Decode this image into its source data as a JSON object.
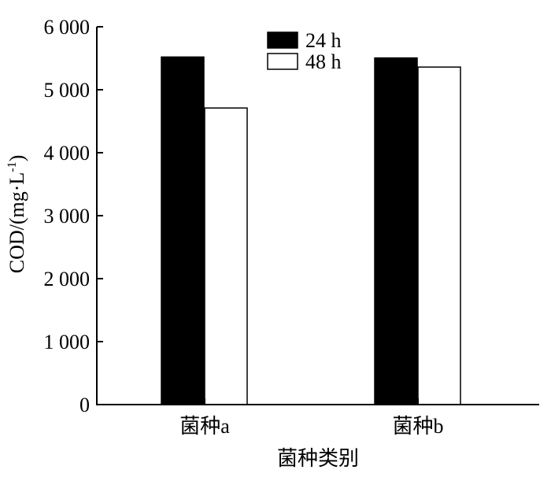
{
  "chart_data": {
    "type": "bar",
    "categories": [
      "菌种a",
      "菌种b"
    ],
    "series": [
      {
        "name": "24 h",
        "values": [
          5520,
          5505
        ],
        "color": "#000000"
      },
      {
        "name": "48 h",
        "values": [
          4710,
          5360
        ],
        "color": "#ffffff"
      }
    ],
    "xlabel": "菌种类别",
    "ylabel_main": "COD/(mg·L",
    "ylabel_sup": "-1",
    "ylabel_close": ")",
    "ylim": [
      0,
      6000
    ],
    "yticks": [
      0,
      1000,
      2000,
      3000,
      4000,
      5000,
      6000
    ],
    "ytick_labels": [
      "0",
      "1 000",
      "2 000",
      "3 000",
      "4 000",
      "5 000",
      "6 000"
    ],
    "legend_position": "top-center",
    "grid": false
  }
}
